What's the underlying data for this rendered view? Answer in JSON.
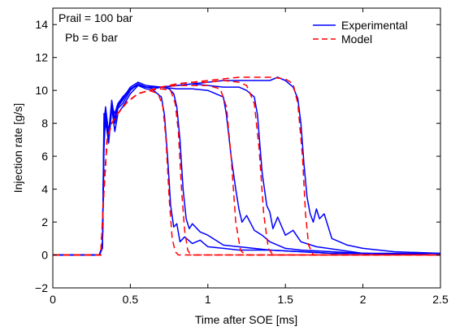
{
  "chart_data": {
    "type": "line",
    "xlabel": "Time after SOE [ms]",
    "ylabel": "Injection rate [g/s]",
    "xlim": [
      0,
      2.5
    ],
    "ylim": [
      -2,
      15
    ],
    "xticks": [
      "0",
      "0.5",
      "1",
      "1.5",
      "2",
      "2.5"
    ],
    "yticks": [
      "−2",
      "0",
      "2",
      "4",
      "6",
      "8",
      "10",
      "12",
      "14"
    ],
    "grid": false,
    "legend_position": "top-right",
    "annotations": [
      "Prail = 100 bar",
      "Pb = 6 bar"
    ],
    "colors": {
      "experimental": "#0000ff",
      "model": "#ff0000"
    },
    "series": [
      {
        "name": "Experimental",
        "style": "solid",
        "color": "#0000ff",
        "curves": [
          {
            "x": [
              0,
              0.3,
              0.32,
              0.33,
              0.34,
              0.36,
              0.38,
              0.4,
              0.42,
              0.45,
              0.5,
              0.55,
              0.6,
              0.65,
              0.7,
              0.72,
              0.74,
              0.76,
              0.78,
              0.8,
              0.82,
              0.85,
              0.9,
              0.95,
              1.0,
              1.1,
              1.2,
              1.4,
              1.6,
              1.8,
              2.0,
              2.2,
              2.5
            ],
            "y": [
              0,
              0,
              0.5,
              6.5,
              8.5,
              7.5,
              9.0,
              7.5,
              8.6,
              9.0,
              9.8,
              10.3,
              10.1,
              10.0,
              9.6,
              8.5,
              6.0,
              3.0,
              1.7,
              1.9,
              0.8,
              1.1,
              0.7,
              0.9,
              0.5,
              0.4,
              0.3,
              0.3,
              0.2,
              0.1,
              0.1,
              0.1,
              0.1
            ]
          },
          {
            "x": [
              0,
              0.3,
              0.32,
              0.33,
              0.34,
              0.36,
              0.38,
              0.4,
              0.42,
              0.45,
              0.5,
              0.55,
              0.6,
              0.65,
              0.7,
              0.75,
              0.78,
              0.8,
              0.82,
              0.84,
              0.86,
              0.88,
              0.9,
              0.95,
              1.0,
              1.05,
              1.1,
              1.2,
              1.4,
              1.6,
              1.8,
              2.0,
              2.5
            ],
            "y": [
              0,
              0,
              0.5,
              7.0,
              8.8,
              7.2,
              9.2,
              8.0,
              8.9,
              9.2,
              10.0,
              10.4,
              10.2,
              10.1,
              10.2,
              10.1,
              9.8,
              9.0,
              7.0,
              4.0,
              2.2,
              1.6,
              1.9,
              1.4,
              1.2,
              0.9,
              0.6,
              0.5,
              0.3,
              0.2,
              0.1,
              0.1,
              0.0
            ]
          },
          {
            "x": [
              0,
              0.3,
              0.32,
              0.33,
              0.34,
              0.36,
              0.38,
              0.4,
              0.42,
              0.45,
              0.5,
              0.55,
              0.6,
              0.7,
              0.8,
              0.9,
              1.0,
              1.05,
              1.1,
              1.12,
              1.15,
              1.18,
              1.2,
              1.22,
              1.25,
              1.3,
              1.35,
              1.4,
              1.5,
              1.6,
              1.8,
              2.0,
              2.5
            ],
            "y": [
              0,
              0,
              0.6,
              7.5,
              8.2,
              6.8,
              8.8,
              8.4,
              9.0,
              9.4,
              10.1,
              10.3,
              10.2,
              10.2,
              10.1,
              10.1,
              10.0,
              9.8,
              9.6,
              8.5,
              6.0,
              4.0,
              2.8,
              2.0,
              2.4,
              1.5,
              1.2,
              0.8,
              0.4,
              0.3,
              0.2,
              0.1,
              0.0
            ]
          },
          {
            "x": [
              0,
              0.3,
              0.32,
              0.33,
              0.34,
              0.36,
              0.38,
              0.4,
              0.42,
              0.45,
              0.5,
              0.55,
              0.6,
              0.7,
              0.8,
              0.9,
              1.0,
              1.1,
              1.2,
              1.25,
              1.3,
              1.32,
              1.35,
              1.38,
              1.4,
              1.42,
              1.45,
              1.5,
              1.55,
              1.6,
              1.7,
              2.0,
              2.5
            ],
            "y": [
              0,
              0,
              0.5,
              8.0,
              9.0,
              7.4,
              9.4,
              8.2,
              9.1,
              9.5,
              10.2,
              10.5,
              10.3,
              10.2,
              10.3,
              10.4,
              10.3,
              10.2,
              10.2,
              10.0,
              9.6,
              8.5,
              5.0,
              3.0,
              2.6,
              1.6,
              2.3,
              1.2,
              1.5,
              0.8,
              0.5,
              0.1,
              0.0
            ]
          },
          {
            "x": [
              0,
              0.3,
              0.32,
              0.33,
              0.34,
              0.36,
              0.38,
              0.4,
              0.42,
              0.45,
              0.5,
              0.55,
              0.6,
              0.7,
              0.8,
              0.9,
              1.0,
              1.1,
              1.2,
              1.3,
              1.4,
              1.45,
              1.5,
              1.55,
              1.58,
              1.6,
              1.62,
              1.64,
              1.66,
              1.68,
              1.7,
              1.72,
              1.75,
              1.8,
              1.9,
              2.0,
              2.2,
              2.5
            ],
            "y": [
              0,
              0,
              0.4,
              8.6,
              8.0,
              7.0,
              9.0,
              8.6,
              9.2,
              9.6,
              10.1,
              10.4,
              10.2,
              10.2,
              10.3,
              10.4,
              10.5,
              10.6,
              10.6,
              10.6,
              10.6,
              10.8,
              10.6,
              10.2,
              9.5,
              8.0,
              5.5,
              3.5,
              2.5,
              2.0,
              2.8,
              2.2,
              2.5,
              1.0,
              0.6,
              0.4,
              0.2,
              0.1
            ]
          }
        ]
      },
      {
        "name": "Model",
        "style": "dashed",
        "color": "#ff0000",
        "curves": [
          {
            "x": [
              0,
              0.31,
              0.33,
              0.35,
              0.38,
              0.42,
              0.48,
              0.55,
              0.62,
              0.68,
              0.71,
              0.73,
              0.75,
              0.77,
              0.79,
              0.81,
              2.5
            ],
            "y": [
              0,
              0,
              4.0,
              7.0,
              8.0,
              8.6,
              9.3,
              9.8,
              10.0,
              9.8,
              9.0,
              7.0,
              3.5,
              1.0,
              0.2,
              0,
              0
            ]
          },
          {
            "x": [
              0,
              0.31,
              0.33,
              0.35,
              0.38,
              0.42,
              0.48,
              0.55,
              0.62,
              0.7,
              0.76,
              0.79,
              0.81,
              0.83,
              0.85,
              0.87,
              0.89,
              2.5
            ],
            "y": [
              0,
              0,
              4.0,
              7.0,
              8.0,
              8.6,
              9.3,
              9.8,
              10.0,
              10.1,
              10.0,
              9.2,
              7.5,
              4.0,
              1.5,
              0.3,
              0,
              0
            ]
          },
          {
            "x": [
              0,
              0.31,
              0.33,
              0.35,
              0.38,
              0.42,
              0.48,
              0.55,
              0.62,
              0.7,
              0.8,
              0.9,
              1.0,
              1.08,
              1.12,
              1.15,
              1.18,
              1.21,
              1.24,
              2.5
            ],
            "y": [
              0,
              0,
              4.0,
              7.0,
              8.0,
              8.6,
              9.3,
              9.8,
              10.0,
              10.2,
              10.3,
              10.3,
              10.3,
              10.1,
              9.0,
              6.0,
              2.0,
              0.3,
              0,
              0
            ]
          },
          {
            "x": [
              0,
              0.31,
              0.33,
              0.35,
              0.38,
              0.42,
              0.48,
              0.55,
              0.62,
              0.7,
              0.8,
              0.9,
              1.0,
              1.1,
              1.2,
              1.25,
              1.3,
              1.33,
              1.36,
              1.39,
              1.42,
              2.5
            ],
            "y": [
              0,
              0,
              4.0,
              7.0,
              8.0,
              8.6,
              9.3,
              9.8,
              10.0,
              10.2,
              10.4,
              10.5,
              10.5,
              10.6,
              10.5,
              10.3,
              9.2,
              6.5,
              2.5,
              0.4,
              0,
              0
            ]
          },
          {
            "x": [
              0,
              0.31,
              0.33,
              0.35,
              0.38,
              0.42,
              0.48,
              0.55,
              0.62,
              0.7,
              0.8,
              0.9,
              1.0,
              1.1,
              1.2,
              1.3,
              1.4,
              1.5,
              1.55,
              1.58,
              1.61,
              1.63,
              1.65,
              1.68,
              2.5
            ],
            "y": [
              0,
              0,
              4.0,
              7.0,
              8.0,
              8.6,
              9.3,
              9.8,
              10.0,
              10.2,
              10.4,
              10.5,
              10.6,
              10.7,
              10.8,
              10.8,
              10.8,
              10.7,
              10.4,
              9.2,
              6.0,
              2.5,
              0.6,
              0,
              0
            ]
          }
        ]
      }
    ]
  }
}
